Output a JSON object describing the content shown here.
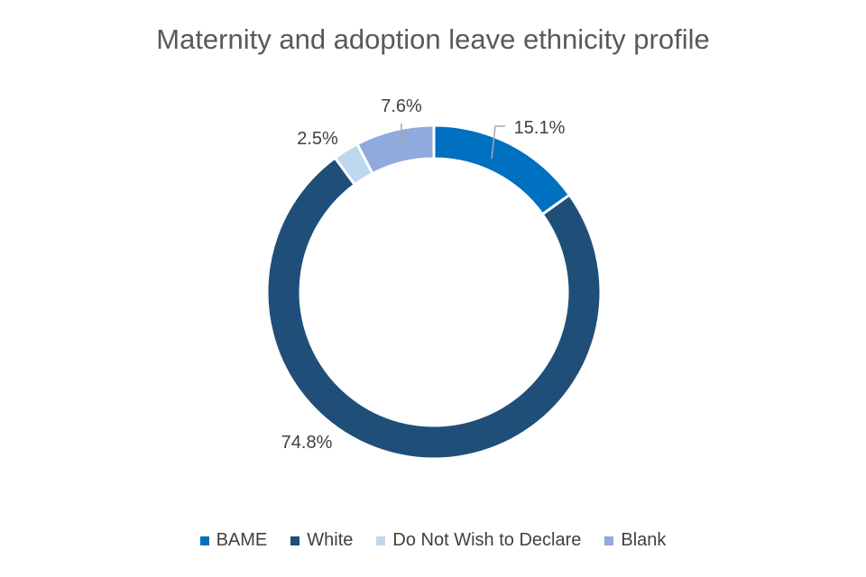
{
  "chart_data": {
    "type": "pie",
    "subtype": "donut",
    "title": "Maternity and adoption leave ethnicity profile",
    "categories": [
      "BAME",
      "White",
      "Do Not Wish to Declare",
      "Blank"
    ],
    "values": [
      15.1,
      74.8,
      2.5,
      7.6
    ],
    "labels": [
      "15.1%",
      "74.8%",
      "2.5%",
      "7.6%"
    ],
    "colors": [
      "#0070C0",
      "#1F4E79",
      "#BDD7EE",
      "#8FAADC"
    ],
    "legend_position": "bottom"
  }
}
